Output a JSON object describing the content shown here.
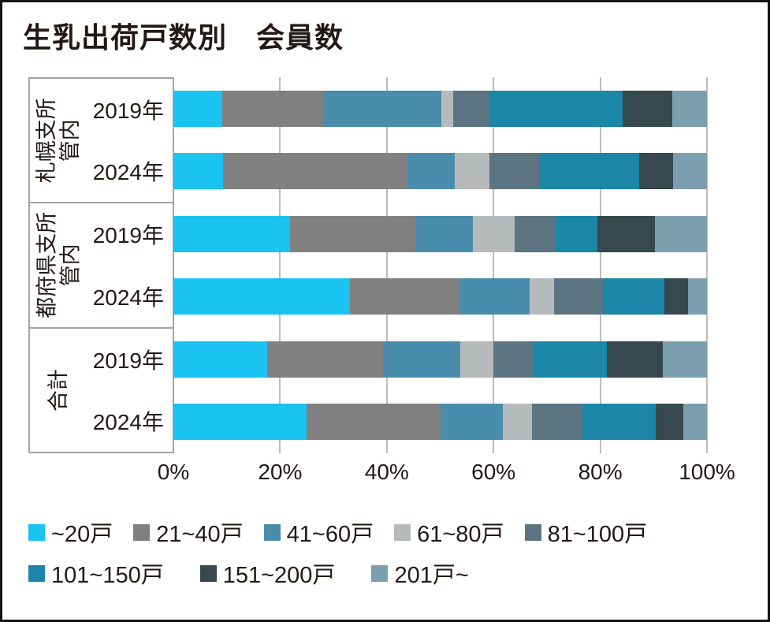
{
  "chart_data": {
    "type": "bar",
    "variant": "100pct-stacked-horizontal",
    "title": "生乳出荷戸数別　会員数",
    "legend_position": "bottom",
    "grid": true,
    "x_axis": {
      "range": [
        0,
        100
      ],
      "ticks": [
        "0%",
        "20%",
        "40%",
        "60%",
        "80%",
        "100%"
      ]
    },
    "series": [
      {
        "name": "~20戸",
        "color": "#1ac3f0"
      },
      {
        "name": "21~40戸",
        "color": "#808080"
      },
      {
        "name": "41~60戸",
        "color": "#4a8cab"
      },
      {
        "name": "61~80戸",
        "color": "#b7babb"
      },
      {
        "name": "81~100戸",
        "color": "#5d7583"
      },
      {
        "name": "101~150戸",
        "color": "#1b86a8"
      },
      {
        "name": "151~200戸",
        "color": "#35494f"
      },
      {
        "name": "201戸~",
        "color": "#7c9fb0"
      }
    ],
    "groups": [
      {
        "label": "札幌支所\n管内",
        "rows": [
          {
            "label": "2019年",
            "values": [
              9.2,
              19.0,
              22.0,
              2.2,
              6.8,
              25.0,
              9.3,
              6.5
            ]
          },
          {
            "label": "2024年",
            "values": [
              9.3,
              34.6,
              8.9,
              6.4,
              9.4,
              18.7,
              6.4,
              6.3
            ]
          }
        ]
      },
      {
        "label": "都府県支所\n管内",
        "rows": [
          {
            "label": "2019年",
            "values": [
              21.8,
              23.5,
              10.8,
              7.9,
              7.6,
              7.9,
              10.8,
              9.7
            ]
          },
          {
            "label": "2024年",
            "values": [
              33.1,
              20.5,
              13.1,
              4.7,
              9.1,
              11.6,
              4.4,
              3.5
            ]
          }
        ]
      },
      {
        "label": "合計",
        "rows": [
          {
            "label": "2019年",
            "values": [
              17.6,
              21.7,
              14.5,
              6.2,
              7.4,
              13.8,
              10.6,
              8.2
            ]
          },
          {
            "label": "2024年",
            "values": [
              25.0,
              25.0,
              11.8,
              5.4,
              9.4,
              13.8,
              5.2,
              4.4
            ]
          }
        ]
      }
    ]
  },
  "colors": {
    "text": "#231815",
    "grid": "#bdbdbd",
    "box_border": "#a3a3a3",
    "frame_border": "#141414"
  },
  "legend_rows": [
    [
      0,
      1,
      2,
      3,
      4
    ],
    [
      5,
      6,
      7
    ]
  ]
}
